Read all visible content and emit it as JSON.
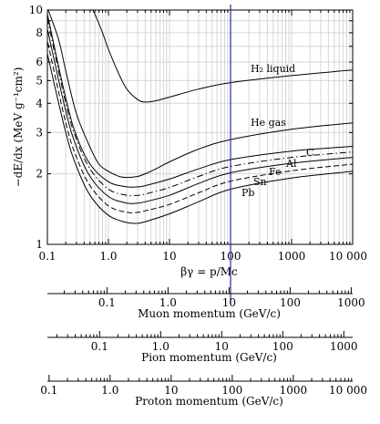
{
  "chart_data": [
    {
      "type": "line",
      "xlabel": "βγ = p/Mc",
      "ylabel": "−dE/dx (MeV g⁻¹cm²)",
      "xscale": "log",
      "yscale": "log",
      "xlim": [
        0.1,
        10000
      ],
      "ylim": [
        1,
        10
      ],
      "grid": true,
      "x_tick_labels": [
        "0.1",
        "1.0",
        "10",
        "100",
        "1000",
        "10 000"
      ],
      "x_tick_values": [
        0.1,
        1,
        10,
        100,
        1000,
        10000
      ],
      "y_tick_labels": [
        "1",
        "2",
        "3",
        "4",
        "5",
        "6",
        "8",
        "10"
      ],
      "y_tick_values": [
        1,
        2,
        3,
        4,
        5,
        6,
        8,
        10
      ],
      "vertical_line": {
        "x": 100,
        "color": "#1f2f9e"
      },
      "series": [
        {
          "name": "H₂ liquid",
          "dash": "solid",
          "x": [
            0.45,
            0.6,
            0.8,
            1.0,
            1.5,
            2.0,
            3.0,
            4.0,
            6.0,
            10,
            30,
            100,
            1000,
            10000
          ],
          "y": [
            11.0,
            9.6,
            8.0,
            6.8,
            5.3,
            4.6,
            4.15,
            4.05,
            4.1,
            4.25,
            4.6,
            4.9,
            5.25,
            5.55
          ]
        },
        {
          "name": "He gas",
          "dash": "solid",
          "x": [
            0.09,
            0.15,
            0.2,
            0.3,
            0.5,
            0.7,
            1.0,
            1.5,
            2.0,
            3.0,
            4.0,
            6.0,
            10,
            30,
            100,
            1000,
            10000
          ],
          "y": [
            11.0,
            7.6,
            5.5,
            3.6,
            2.6,
            2.2,
            2.05,
            1.95,
            1.93,
            1.95,
            2.0,
            2.1,
            2.25,
            2.55,
            2.8,
            3.1,
            3.3
          ]
        },
        {
          "name": "C",
          "dash": "solid",
          "x": [
            0.09,
            0.1,
            0.2,
            0.3,
            0.5,
            1.0,
            2.0,
            3.0,
            4.0,
            10,
            30,
            100,
            1000,
            10000
          ],
          "y": [
            11.0,
            9.6,
            4.2,
            2.9,
            2.2,
            1.85,
            1.76,
            1.76,
            1.78,
            1.9,
            2.1,
            2.3,
            2.5,
            2.62
          ]
        },
        {
          "name": "Al",
          "dash": "dashdot",
          "x": [
            0.09,
            0.1,
            0.2,
            0.3,
            0.5,
            1.0,
            2.0,
            3.0,
            4.0,
            10,
            30,
            100,
            1000,
            10000
          ],
          "y": [
            10.5,
            9.2,
            4.0,
            2.8,
            2.1,
            1.72,
            1.62,
            1.62,
            1.64,
            1.75,
            1.95,
            2.15,
            2.35,
            2.48
          ]
        },
        {
          "name": "Fe",
          "dash": "solid",
          "x": [
            0.09,
            0.1,
            0.2,
            0.3,
            0.5,
            1.0,
            2.0,
            3.0,
            4.0,
            10,
            30,
            100,
            1000,
            10000
          ],
          "y": [
            9.5,
            8.3,
            3.7,
            2.6,
            1.95,
            1.6,
            1.5,
            1.5,
            1.52,
            1.62,
            1.82,
            2.02,
            2.22,
            2.35
          ]
        },
        {
          "name": "Sn",
          "dash": "dashed",
          "x": [
            0.09,
            0.1,
            0.2,
            0.3,
            0.5,
            1.0,
            2.0,
            3.0,
            4.0,
            10,
            30,
            100,
            1000,
            10000
          ],
          "y": [
            8.5,
            7.4,
            3.3,
            2.35,
            1.78,
            1.46,
            1.37,
            1.37,
            1.39,
            1.48,
            1.66,
            1.86,
            2.06,
            2.2
          ]
        },
        {
          "name": "Pb",
          "dash": "solid",
          "x": [
            0.09,
            0.1,
            0.2,
            0.3,
            0.5,
            1.0,
            2.0,
            3.0,
            4.0,
            10,
            30,
            100,
            1000,
            10000
          ],
          "y": [
            7.5,
            6.5,
            3.0,
            2.15,
            1.62,
            1.33,
            1.24,
            1.23,
            1.25,
            1.35,
            1.52,
            1.72,
            1.92,
            2.05
          ]
        }
      ]
    }
  ],
  "momentum_scales": [
    {
      "title": "Muon momentum (GeV/c)",
      "mass_gev": 0.10566,
      "tick_labels": [
        "0.1",
        "1.0",
        "10",
        "100",
        "1000"
      ],
      "tick_values": [
        0.1,
        1,
        10,
        100,
        1000
      ]
    },
    {
      "title": "Pion momentum (GeV/c)",
      "mass_gev": 0.13957,
      "tick_labels": [
        "0.1",
        "1.0",
        "10",
        "100",
        "1000"
      ],
      "tick_values": [
        0.1,
        1,
        10,
        100,
        1000
      ]
    },
    {
      "title": "Proton momentum (GeV/c)",
      "mass_gev": 0.93827,
      "tick_labels": [
        "0.1",
        "1.0",
        "10",
        "100",
        "1000",
        "10 000"
      ],
      "tick_values": [
        0.1,
        1,
        10,
        100,
        1000,
        10000
      ]
    }
  ],
  "colors": {
    "grid": "#d6d6d6",
    "curve": "#000000",
    "marker_line": "#1f2f9e"
  }
}
